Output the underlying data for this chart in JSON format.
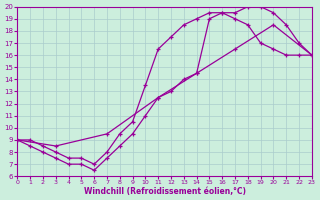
{
  "xlabel": "Windchill (Refroidissement éolien,°C)",
  "bg_color": "#cceedd",
  "line_color": "#990099",
  "grid_color": "#aacccc",
  "xlim": [
    0,
    23
  ],
  "ylim": [
    6,
    20
  ],
  "xticks": [
    0,
    1,
    2,
    3,
    4,
    5,
    6,
    7,
    8,
    9,
    10,
    11,
    12,
    13,
    14,
    15,
    16,
    17,
    18,
    19,
    20,
    21,
    22,
    23
  ],
  "yticks": [
    6,
    7,
    8,
    9,
    10,
    11,
    12,
    13,
    14,
    15,
    16,
    17,
    18,
    19,
    20
  ],
  "curve1_x": [
    0,
    1,
    2,
    3,
    4,
    5,
    6,
    7,
    8,
    9,
    10,
    11,
    12,
    13,
    14,
    15,
    16,
    17,
    18,
    19,
    20,
    21,
    22,
    23
  ],
  "curve1_y": [
    9,
    8.5,
    8,
    7.5,
    7,
    7,
    6.5,
    7.5,
    8.5,
    9.5,
    11,
    12.5,
    13,
    14,
    14.5,
    19.0,
    19.5,
    19.5,
    20.0,
    20.0,
    19.5,
    18.5,
    17.0,
    16.0
  ],
  "curve2_x": [
    0,
    1,
    2,
    3,
    4,
    5,
    6,
    7,
    8,
    9,
    10,
    11,
    12,
    13,
    14,
    15,
    16,
    17,
    18,
    19,
    20,
    21,
    22,
    23
  ],
  "curve2_y": [
    9,
    9,
    8.5,
    8.0,
    7.5,
    7.5,
    7.0,
    8.0,
    9.5,
    10.5,
    13.5,
    16.5,
    17.5,
    18.5,
    19.0,
    19.5,
    19.5,
    19.0,
    18.5,
    17.0,
    16.5,
    16.0,
    16.0,
    16.0
  ],
  "curve3_x": [
    0,
    3,
    7,
    11,
    14,
    17,
    20,
    23
  ],
  "curve3_y": [
    9,
    8.5,
    9.5,
    12.5,
    14.5,
    16.5,
    18.5,
    16.0
  ]
}
